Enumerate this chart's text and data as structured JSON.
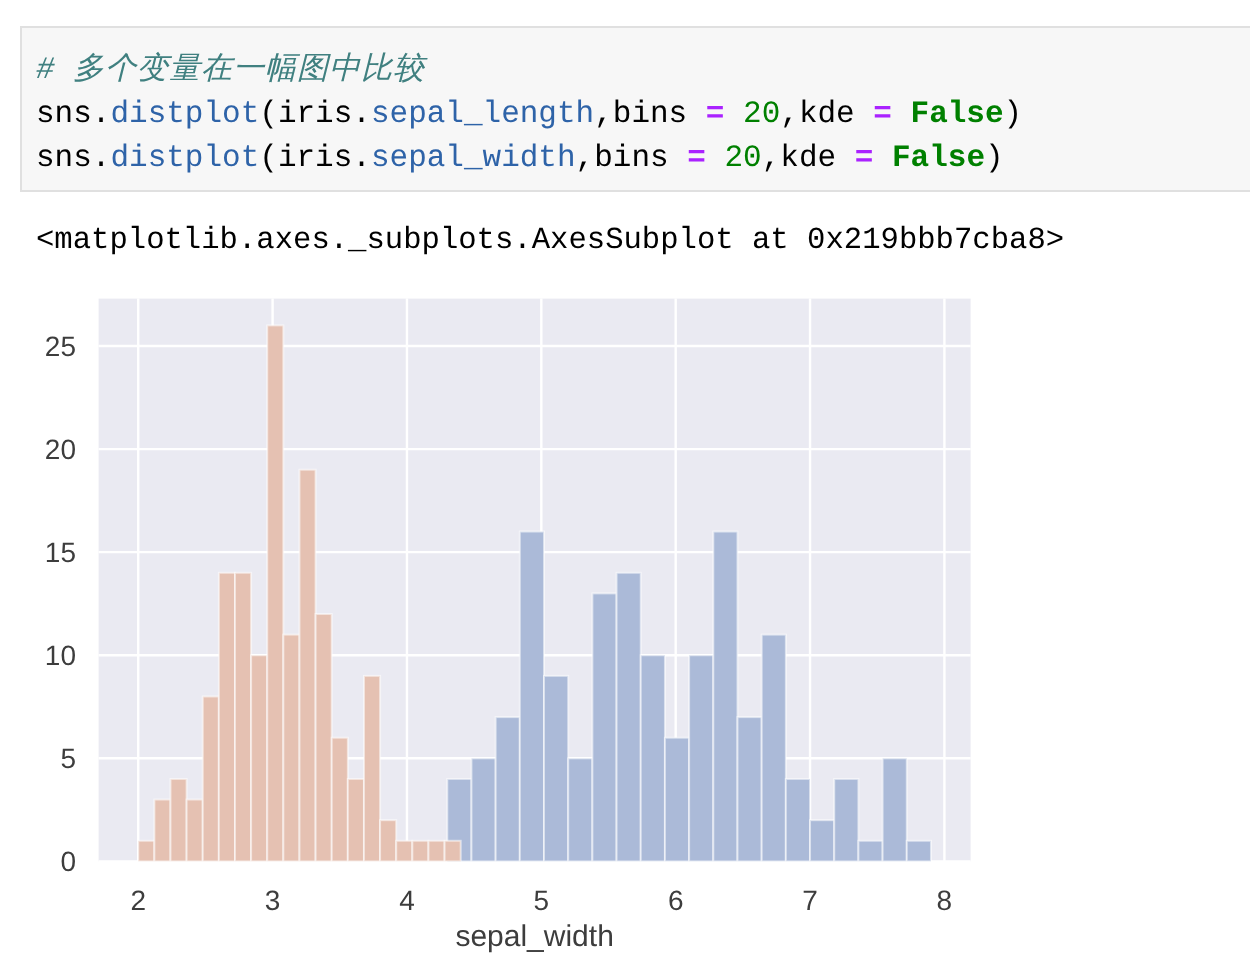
{
  "chart_data": [
    {
      "type": "histogram",
      "xlabel": "sepal_width",
      "xlim": [
        1.705,
        8.195
      ],
      "xticks": [
        2,
        3,
        4,
        5,
        6,
        7,
        8
      ],
      "ylim": [
        0,
        27.3
      ],
      "yticks": [
        0,
        5,
        10,
        15,
        20,
        25
      ],
      "grid": true,
      "annotations": [
        "# 多个变量在一幅图中比较\nsns.distplot(iris.sepal_length,bins = 20,kde = False)\nsns.distplot(iris.sepal_width,bins = 20,kde = False)",
        "<matplotlib.axes._subplots.AxesSubplot at 0x219bbb7cba8>"
      ],
      "color": "#abbad8",
      "bins": [
        4.3,
        4.48,
        4.66,
        4.84,
        5.02,
        5.2,
        5.38,
        5.56,
        5.74,
        5.92,
        6.1,
        6.28,
        6.46,
        6.64,
        6.82,
        7.0,
        7.18,
        7.36,
        7.54,
        7.72,
        7.9
      ],
      "values": [
        4,
        5,
        7,
        16,
        9,
        5,
        13,
        14,
        10,
        6,
        10,
        16,
        7,
        11,
        4,
        2,
        4,
        1,
        5,
        1
      ]
    },
    {
      "type": "histogram",
      "xlim": [
        1.705,
        8.195
      ],
      "ylim": [
        0,
        27.3
      ],
      "color": "#e5c1b2",
      "bins": [
        2.0,
        2.12,
        2.24,
        2.36,
        2.48,
        2.6,
        2.72,
        2.84,
        2.96,
        3.08,
        3.2,
        3.32,
        3.44,
        3.56,
        3.68,
        3.8,
        3.92,
        4.04,
        4.16,
        4.28,
        4.4
      ],
      "values": [
        1,
        3,
        4,
        3,
        8,
        14,
        14,
        10,
        26,
        11,
        19,
        12,
        6,
        4,
        9,
        2,
        1,
        1,
        1,
        1
      ]
    }
  ]
}
